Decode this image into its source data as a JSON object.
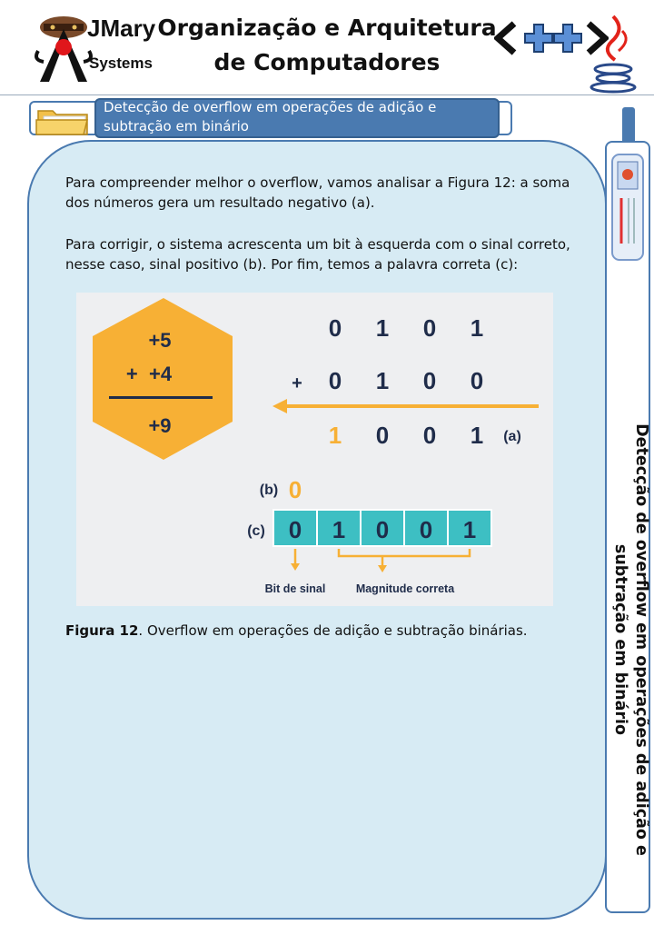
{
  "header": {
    "brand_line1": "JMary",
    "brand_line2": "Systems",
    "title": "Organização e Arquitetura de Computadores"
  },
  "section": {
    "label": "Detecção de overflow em operações de adição e subtração em binário"
  },
  "side": {
    "title": "Detecção de overflow em operações de adição e subtração em binário"
  },
  "content": {
    "para1": "Para compreender melhor o overflow, vamos analisar a Figura 12: a soma dos números gera um resultado negativo (a).",
    "para2": "Para corrigir, o sistema acrescenta um bit à esquerda com o sinal correto, nesse caso, sinal positivo (b). Por fim, temos a palavra correta (c):",
    "caption_label": "Figura 12",
    "caption_text": ". Overflow em operações de adição e subtração binárias."
  },
  "figure": {
    "hex_line1": "+5",
    "hex_line2": "+  +4",
    "hex_result": "+9",
    "row1_bits": [
      "0",
      "1",
      "0",
      "1"
    ],
    "plus_sign": "+",
    "row2_bits": [
      "0",
      "1",
      "0",
      "0"
    ],
    "row3_bits": [
      "1",
      "0",
      "0",
      "1"
    ],
    "label_a": "(a)",
    "label_b": "(b)",
    "sign_bit": "0",
    "label_c": "(c)",
    "word_bits": [
      "0",
      "1",
      "0",
      "0",
      "1"
    ],
    "caption_sign": "Bit de sinal",
    "caption_magnitude": "Magnitude correta"
  },
  "colors": {
    "accent": "#4a7ab0",
    "card": "#d7ebf4",
    "orange": "#f7b035",
    "teal": "#3dbfc3",
    "navy": "#1f2c4a"
  }
}
